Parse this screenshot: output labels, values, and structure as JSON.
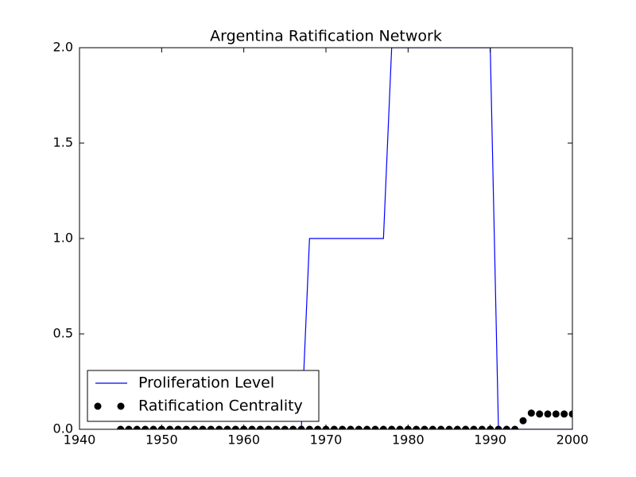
{
  "chart_data": {
    "type": "line",
    "title": "Argentina Ratification Network",
    "x": [
      1945,
      1946,
      1947,
      1948,
      1949,
      1950,
      1951,
      1952,
      1953,
      1954,
      1955,
      1956,
      1957,
      1958,
      1959,
      1960,
      1961,
      1962,
      1963,
      1964,
      1965,
      1966,
      1967,
      1968,
      1969,
      1970,
      1971,
      1972,
      1973,
      1974,
      1975,
      1976,
      1977,
      1978,
      1979,
      1980,
      1981,
      1982,
      1983,
      1984,
      1985,
      1986,
      1987,
      1988,
      1989,
      1990,
      1991,
      1992,
      1993,
      1994,
      1995,
      1996,
      1997,
      1998,
      1999,
      2000
    ],
    "series": [
      {
        "name": "Proliferation Level",
        "type": "line",
        "color": "#0000ff",
        "values": [
          0,
          0,
          0,
          0,
          0,
          0,
          0,
          0,
          0,
          0,
          0,
          0,
          0,
          0,
          0,
          0,
          0,
          0,
          0,
          0,
          0,
          0,
          0,
          1,
          1,
          1,
          1,
          1,
          1,
          1,
          1,
          1,
          1,
          2,
          2,
          2,
          2,
          2,
          2,
          2,
          2,
          2,
          2,
          2,
          2,
          2,
          0,
          0,
          0,
          0,
          0,
          0,
          0,
          0,
          0,
          0
        ]
      },
      {
        "name": "Ratification Centrality",
        "type": "scatter",
        "color": "#000000",
        "values": [
          0,
          0,
          0,
          0,
          0,
          0,
          0,
          0,
          0,
          0,
          0,
          0,
          0,
          0,
          0,
          0,
          0,
          0,
          0,
          0,
          0,
          0,
          0,
          0,
          0,
          0,
          0,
          0,
          0,
          0,
          0,
          0,
          0,
          0,
          0,
          0,
          0,
          0,
          0,
          0,
          0,
          0,
          0,
          0,
          0,
          0,
          0,
          0,
          0,
          0.045,
          0.085,
          0.08,
          0.08,
          0.08,
          0.08,
          0.08
        ]
      }
    ],
    "xlim": [
      1940,
      2000
    ],
    "xticks": [
      1940,
      1950,
      1960,
      1970,
      1980,
      1990,
      2000
    ],
    "ylim": [
      0,
      2
    ],
    "yticks": [
      {
        "value": 0,
        "label": "0.0"
      },
      {
        "value": 0.5,
        "label": "0.5"
      },
      {
        "value": 1,
        "label": "1.0"
      },
      {
        "value": 1.5,
        "label": "1.5"
      },
      {
        "value": 2,
        "label": "2.0"
      }
    ],
    "legend": "lower left",
    "grid": false
  }
}
